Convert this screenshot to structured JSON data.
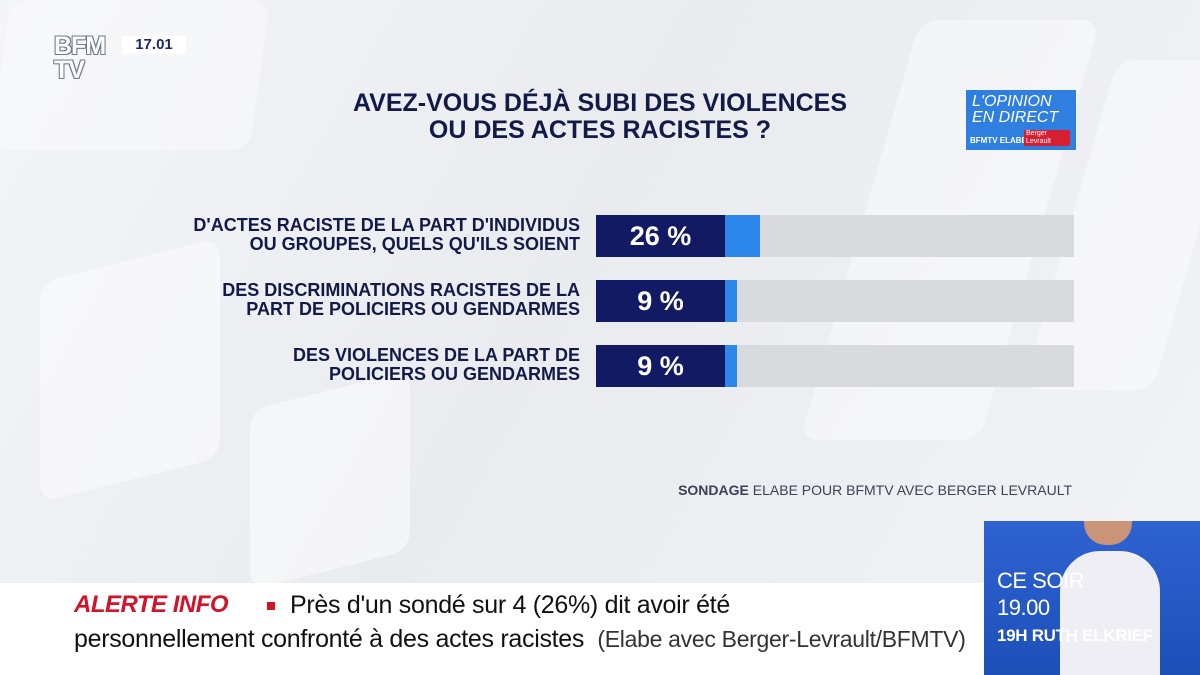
{
  "channel": {
    "logo_line1": "BFM",
    "logo_line2": "TV",
    "time": "17.01"
  },
  "title_line1": "AVEZ-VOUS DÉJÀ SUBI DES VIOLENCES",
  "title_line2": "OU DES ACTES RACISTES ?",
  "badge": {
    "line1": "L'OPINION",
    "line2": "EN DIRECT",
    "brand": "BFMTV ELABE",
    "partner": "Berger Levrault"
  },
  "colors": {
    "dark_bar": "#121a64",
    "light_bar": "#2d86ea",
    "track": "#d8dade",
    "alert": "#d3132a"
  },
  "chart_data": {
    "type": "bar",
    "orientation": "horizontal",
    "categories": [
      [
        "D'ACTES RACISTE DE LA PART D'INDIVIDUS",
        "OU GROUPES, QUELS QU'ILS SOIENT"
      ],
      [
        "DES DISCRIMINATIONS RACISTES DE LA",
        "PART DE POLICIERS OU GENDARMES"
      ],
      [
        "DES VIOLENCES DE LA PART DE",
        "POLICIERS OU GENDARMES"
      ]
    ],
    "values": [
      26,
      9,
      9
    ],
    "value_labels": [
      "26 %",
      "9 %",
      "9 %"
    ],
    "unit": "%",
    "xlim": [
      0,
      100
    ]
  },
  "source": {
    "prefix": "SONDAGE",
    "rest": "ELABE POUR BFMTV AVEC BERGER LEVRAULT"
  },
  "ticker": {
    "alert_label": "ALERTE INFO",
    "line1": "Près d'un sondé sur 4 (26%) dit avoir été",
    "line2": "personnellement confronté à des actes racistes",
    "line2_source": "(Elabe avec Berger-Levrault/BFMTV)"
  },
  "promo": {
    "label": "CE SOIR",
    "time": "19.00",
    "show": "19H RUTH ELKRIEF"
  }
}
